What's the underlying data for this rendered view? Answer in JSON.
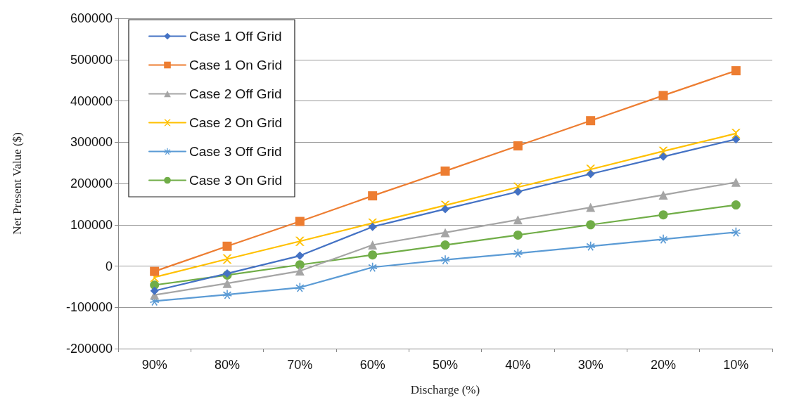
{
  "chart_data": {
    "type": "line",
    "xlabel": "Discharge (%)",
    "ylabel": "Net Present Value ($)",
    "categories": [
      "90%",
      "80%",
      "70%",
      "60%",
      "50%",
      "40%",
      "30%",
      "20%",
      "10%"
    ],
    "ylim": [
      -200000,
      600000
    ],
    "yticks": [
      -200000,
      -100000,
      0,
      100000,
      200000,
      300000,
      400000,
      500000,
      600000
    ],
    "grid": "y",
    "legend": "top left",
    "line_style": "solid",
    "series": [
      {
        "name": "Case 1 Off Grid",
        "color": "#4472c4",
        "marker": "diamond",
        "values": [
          -60000,
          -18000,
          25000,
          95000,
          138000,
          180000,
          223000,
          265000,
          307000
        ]
      },
      {
        "name": "Case 1 On Grid",
        "color": "#ed7d31",
        "marker": "square",
        "values": [
          -13000,
          48000,
          108000,
          170000,
          230000,
          291000,
          352000,
          413000,
          473000
        ]
      },
      {
        "name": "Case 2 Off Grid",
        "color": "#a5a5a5",
        "marker": "triangle",
        "values": [
          -70000,
          -42000,
          -12000,
          51000,
          81000,
          112000,
          142000,
          172000,
          203000
        ]
      },
      {
        "name": "Case 2 On Grid",
        "color": "#ffc000",
        "marker": "cross",
        "values": [
          -27000,
          17000,
          60000,
          104000,
          147000,
          191000,
          234000,
          278000,
          321000
        ]
      },
      {
        "name": "Case 3 Off Grid",
        "color": "#5b9bd5",
        "marker": "star",
        "values": [
          -85000,
          -69000,
          -52000,
          -3000,
          15000,
          31000,
          48000,
          65000,
          82000
        ]
      },
      {
        "name": "Case 3 On Grid",
        "color": "#70ad47",
        "marker": "circle",
        "values": [
          -46000,
          -22000,
          3000,
          27000,
          51000,
          75000,
          100000,
          124000,
          148000
        ]
      }
    ]
  }
}
